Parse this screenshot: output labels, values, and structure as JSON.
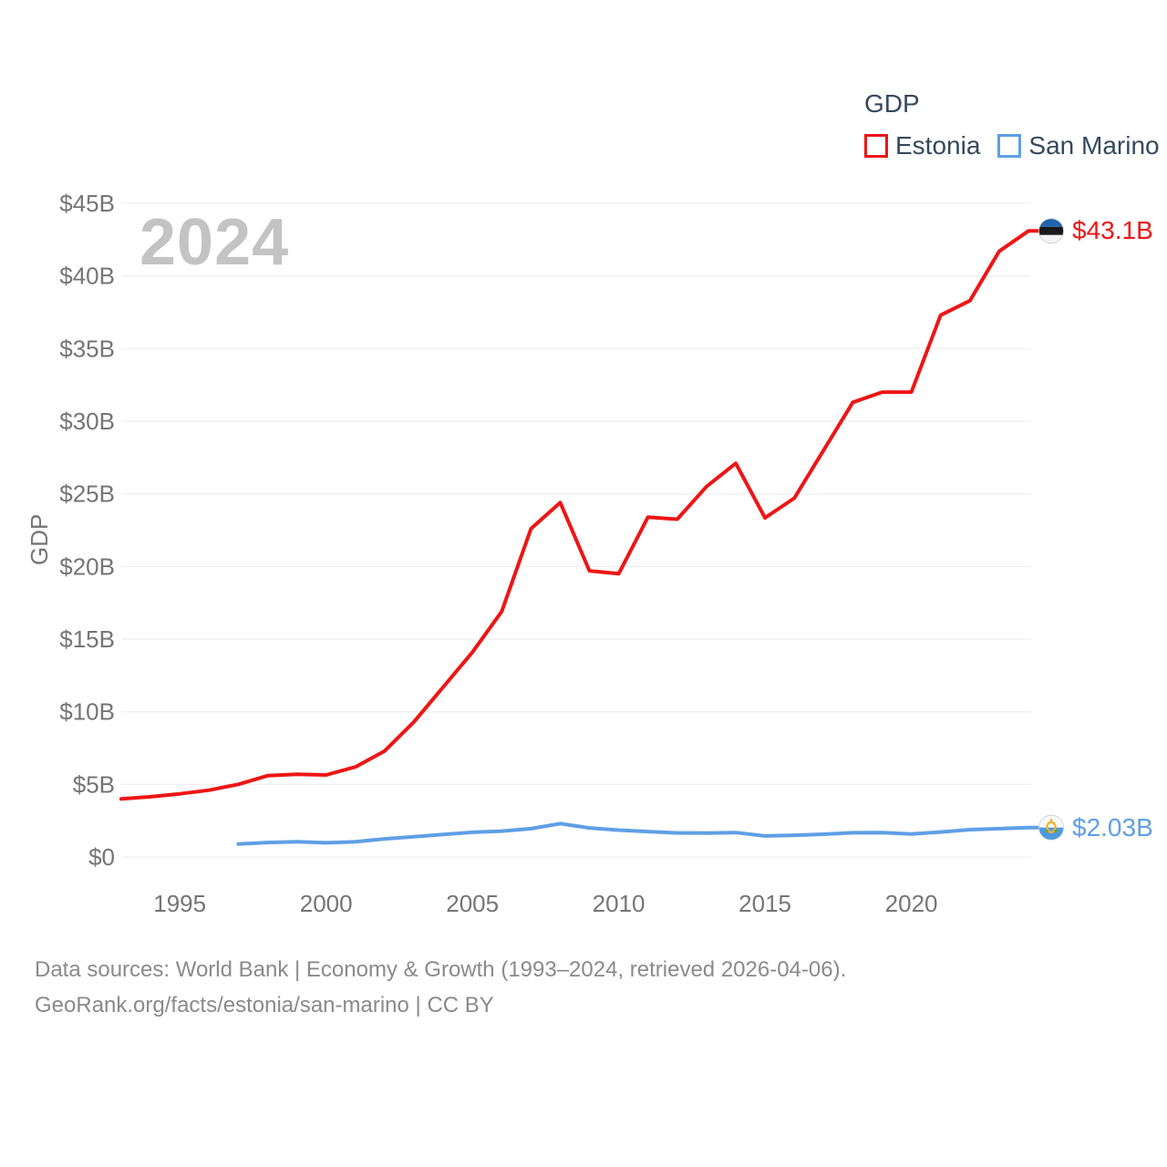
{
  "title": "GDP",
  "watermark_year": "2024",
  "colors": {
    "estonia_red": "#ee1515",
    "san_marino_blue": "#5f9fe6",
    "legend_text": "#35495c",
    "axis_text": "#757575",
    "watermark": "#c3c3c3",
    "source_text": "#8a8a8a",
    "grid": "#ebebeb"
  },
  "source": {
    "line1": "Data sources: World Bank | Economy & Growth (1993–2024, retrieved 2026-04-06).",
    "line2": "GeoRank.org/facts/estonia/san-marino | CC BY"
  },
  "chart_data": {
    "type": "line",
    "title": "GDP",
    "ylabel": "GDP",
    "xlabel": "",
    "watermark": "2024",
    "grid": "horizontal",
    "ylim": [
      0,
      45
    ],
    "x_range": [
      1993,
      2024
    ],
    "legend": {
      "title": "GDP",
      "position": "top-right"
    },
    "yticks": [
      {
        "value": 0,
        "label": "$0"
      },
      {
        "value": 5,
        "label": "$5B"
      },
      {
        "value": 10,
        "label": "$10B"
      },
      {
        "value": 15,
        "label": "$15B"
      },
      {
        "value": 20,
        "label": "$20B"
      },
      {
        "value": 25,
        "label": "$25B"
      },
      {
        "value": 30,
        "label": "$30B"
      },
      {
        "value": 35,
        "label": "$35B"
      },
      {
        "value": 40,
        "label": "$40B"
      },
      {
        "value": 45,
        "label": "$45B"
      }
    ],
    "xticks": [
      {
        "value": 1995,
        "label": "1995"
      },
      {
        "value": 2000,
        "label": "2000"
      },
      {
        "value": 2005,
        "label": "2005"
      },
      {
        "value": 2010,
        "label": "2010"
      },
      {
        "value": 2015,
        "label": "2015"
      },
      {
        "value": 2020,
        "label": "2020"
      }
    ],
    "series": [
      {
        "name": "Estonia",
        "flag": "estonia",
        "color": "#ee1515",
        "end_label": "$43.1B",
        "unit": "USD billions",
        "years": [
          1993,
          1994,
          1995,
          1996,
          1997,
          1998,
          1999,
          2000,
          2001,
          2002,
          2003,
          2004,
          2005,
          2006,
          2007,
          2008,
          2009,
          2010,
          2011,
          2012,
          2013,
          2014,
          2015,
          2016,
          2017,
          2018,
          2019,
          2020,
          2021,
          2022,
          2023,
          2024
        ],
        "values": [
          4.0,
          4.15,
          4.35,
          4.6,
          5.0,
          5.6,
          5.7,
          5.65,
          6.2,
          7.3,
          9.3,
          11.7,
          14.1,
          16.9,
          22.6,
          24.4,
          19.7,
          19.5,
          23.4,
          23.25,
          25.5,
          27.1,
          23.35,
          24.7,
          28.0,
          31.3,
          32.0,
          32.0,
          37.3,
          38.3,
          41.7,
          43.1
        ]
      },
      {
        "name": "San Marino",
        "flag": "san-marino",
        "color": "#5f9fe6",
        "end_label": "$2.03B",
        "unit": "USD billions",
        "years": [
          1997,
          1998,
          1999,
          2000,
          2001,
          2002,
          2003,
          2004,
          2005,
          2006,
          2007,
          2008,
          2009,
          2010,
          2011,
          2012,
          2013,
          2014,
          2015,
          2016,
          2017,
          2018,
          2019,
          2020,
          2021,
          2022,
          2023,
          2024
        ],
        "values": [
          0.9,
          1.0,
          1.05,
          0.98,
          1.05,
          1.25,
          1.4,
          1.55,
          1.7,
          1.78,
          1.95,
          2.3,
          2.0,
          1.85,
          1.75,
          1.66,
          1.65,
          1.68,
          1.45,
          1.5,
          1.57,
          1.67,
          1.68,
          1.58,
          1.72,
          1.88,
          1.95,
          2.03
        ]
      }
    ]
  }
}
